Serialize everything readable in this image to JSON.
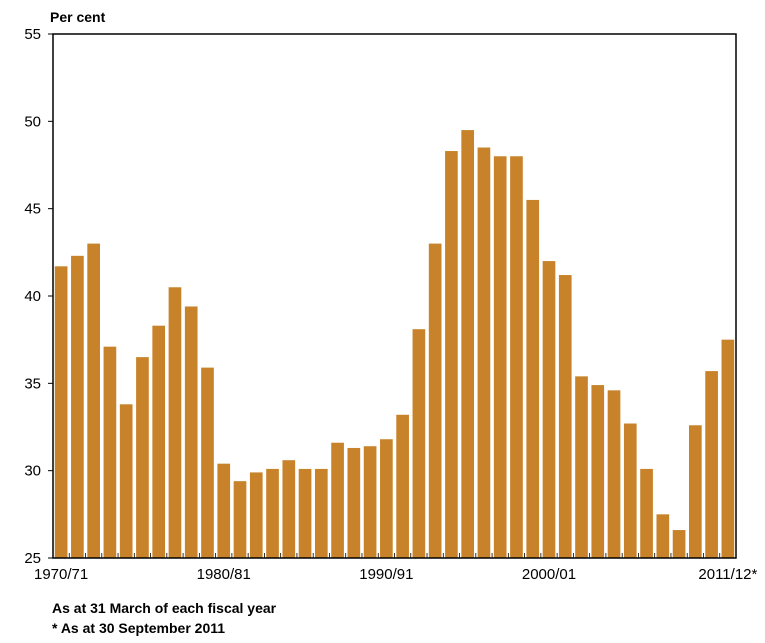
{
  "chart_data": {
    "type": "bar",
    "ylabel": "Per cent",
    "ylim": [
      25,
      55
    ],
    "yticks": [
      25,
      30,
      35,
      40,
      45,
      50,
      55
    ],
    "x_tick_labels": [
      {
        "index": 0,
        "label": "1970/71"
      },
      {
        "index": 10,
        "label": "1980/81"
      },
      {
        "index": 20,
        "label": "1990/91"
      },
      {
        "index": 30,
        "label": "2000/01"
      },
      {
        "index": 41,
        "label": "2011/12*"
      }
    ],
    "categories": [
      "1970/71",
      "1971/72",
      "1972/73",
      "1973/74",
      "1974/75",
      "1975/76",
      "1976/77",
      "1977/78",
      "1978/79",
      "1979/80",
      "1980/81",
      "1981/82",
      "1982/83",
      "1983/84",
      "1984/85",
      "1985/86",
      "1986/87",
      "1987/88",
      "1988/89",
      "1989/90",
      "1990/91",
      "1991/92",
      "1992/93",
      "1993/94",
      "1994/95",
      "1995/96",
      "1996/97",
      "1997/98",
      "1998/99",
      "1999/00",
      "2000/01",
      "2001/02",
      "2002/03",
      "2003/04",
      "2004/05",
      "2005/06",
      "2006/07",
      "2007/08",
      "2008/09",
      "2009/10",
      "2010/11",
      "2011/12*"
    ],
    "values": [
      41.7,
      42.3,
      43.0,
      37.1,
      33.8,
      36.5,
      38.3,
      40.5,
      39.4,
      35.9,
      30.4,
      29.4,
      29.9,
      30.1,
      30.6,
      30.1,
      30.1,
      31.6,
      31.3,
      31.4,
      31.8,
      33.2,
      38.1,
      43.0,
      48.3,
      49.5,
      48.5,
      48.0,
      48.0,
      45.5,
      42.0,
      41.2,
      35.4,
      34.9,
      34.6,
      32.7,
      30.1,
      27.5,
      26.6,
      32.6,
      35.7,
      37.5
    ],
    "bar_color": "#c8832a",
    "grid": false
  },
  "notes": {
    "line1": "As at 31 March of each fiscal year",
    "line2": "* As at 30 September 2011"
  }
}
